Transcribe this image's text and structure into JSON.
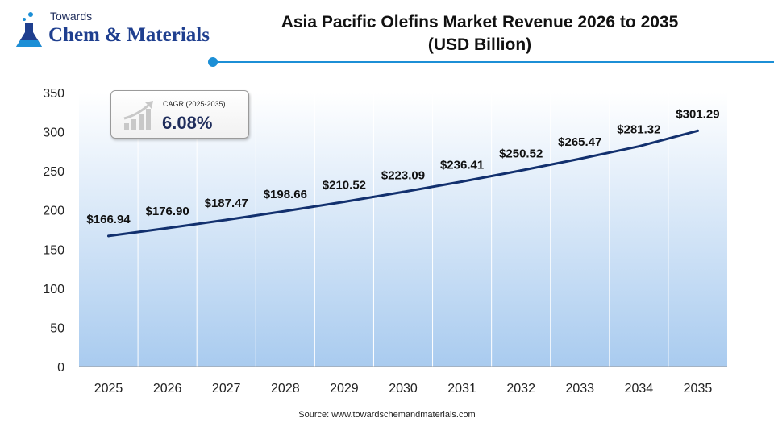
{
  "logo": {
    "small": "Towards",
    "big": "Chem & Materials"
  },
  "header": {
    "title_line1": "Asia Pacific Olefins Market Revenue 2026 to 2035",
    "title_line2": "(USD Billion)"
  },
  "cagr": {
    "label": "CAGR (2025-2035)",
    "value": "6.08%",
    "icon": "growth-bars-arrow-icon"
  },
  "source": "Source: www.towardschemandmaterials.com",
  "colors": {
    "line": "#12306e",
    "area_top": "#ffffff",
    "area_bottom": "#a9cbef",
    "accent": "#1c8fd6"
  },
  "chart_data": {
    "type": "line",
    "title": "Asia Pacific Olefins Market Revenue 2026 to 2035 (USD Billion)",
    "xlabel": "",
    "ylabel": "",
    "x": [
      "2025",
      "2026",
      "2027",
      "2028",
      "2029",
      "2030",
      "2031",
      "2032",
      "2033",
      "2034",
      "2035"
    ],
    "values": [
      166.94,
      176.9,
      187.47,
      198.66,
      210.52,
      223.09,
      236.41,
      250.52,
      265.47,
      281.32,
      301.29
    ],
    "data_labels": [
      "$166.94",
      "$176.90",
      "$187.47",
      "$198.66",
      "$210.52",
      "$223.09",
      "$236.41",
      "$250.52",
      "$265.47",
      "$281.32",
      "$301.29"
    ],
    "y_ticks": [
      "0",
      "50",
      "100",
      "150",
      "200",
      "250",
      "300",
      "350"
    ],
    "ylim": [
      0,
      350
    ],
    "grid": "vertical"
  }
}
